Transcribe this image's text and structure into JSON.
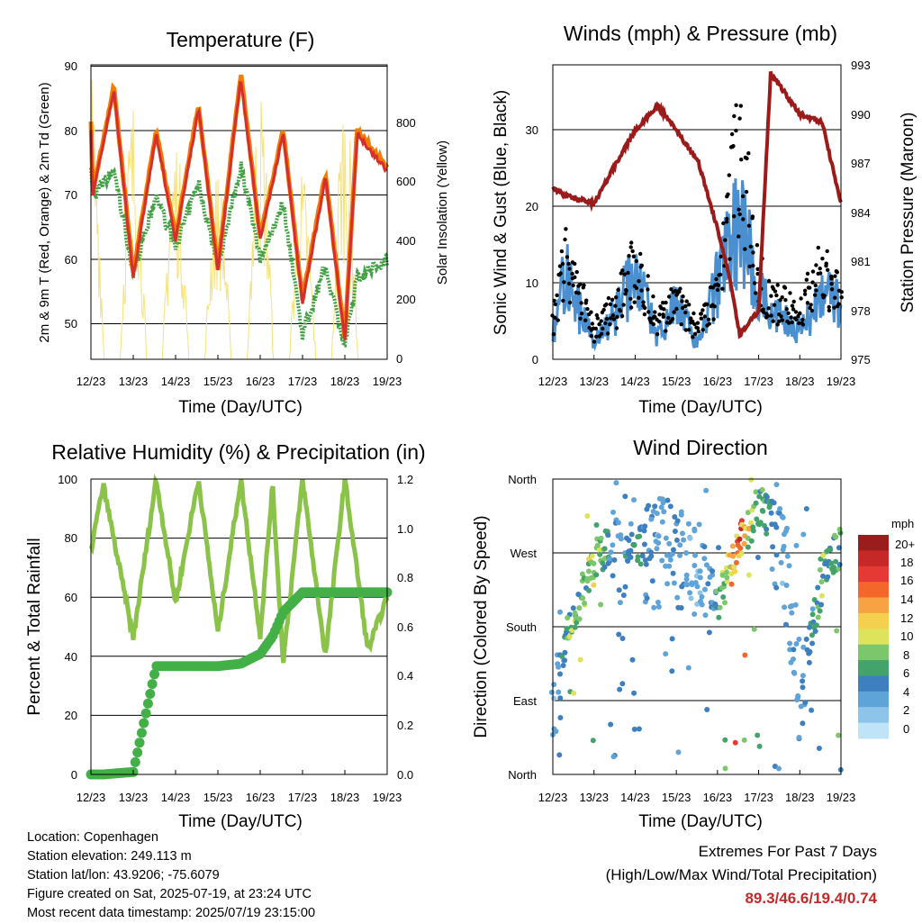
{
  "colors": {
    "temp2m": "#d32f2f",
    "temp9m": "#f57c00",
    "dew": "#43a047",
    "solar": "#f5e27a",
    "gust": "#000000",
    "wind": "#4a90d0",
    "pressure": "#9b1b1b",
    "rh": "#8bc34a",
    "precip": "#43b047",
    "extremes": "#c62828"
  },
  "x_ticks": [
    "12/23",
    "13/23",
    "14/23",
    "15/23",
    "16/23",
    "17/23",
    "18/23",
    "19/23"
  ],
  "panels": {
    "temperature": {
      "title": "Temperature (F)",
      "xlabel": "Time (Day/UTC)",
      "ylabel_left": "2m & 9m T (Red, Orange) & 2m Td (Green)",
      "ylabel_right": "Solar Insolation (Yellow)",
      "left_ticks": [
        "50",
        "60",
        "70",
        "80",
        "90"
      ],
      "right_ticks": [
        "0",
        "200",
        "400",
        "600",
        "800"
      ]
    },
    "winds": {
      "title": "Winds (mph) & Pressure (mb)",
      "xlabel": "Time (Day/UTC)",
      "ylabel_left": "Sonic Wind & Gust (Blue, Black)",
      "ylabel_right": "Station Pressure (Maroon)",
      "left_ticks": [
        "0",
        "10",
        "20",
        "30"
      ],
      "right_ticks": [
        "975",
        "978",
        "981",
        "984",
        "987",
        "990",
        "993"
      ]
    },
    "humidity": {
      "title": "Relative Humidity (%) & Precipitation (in)",
      "xlabel": "Time (Day/UTC)",
      "ylabel_left": "Percent & Total Rainfall",
      "left_ticks": [
        "0",
        "20",
        "40",
        "60",
        "80",
        "100"
      ],
      "right_ticks": [
        "0.0",
        "0.2",
        "0.4",
        "0.6",
        "0.8",
        "1.0",
        "1.2"
      ]
    },
    "direction": {
      "title": "Wind Direction",
      "xlabel": "Time (Day/UTC)",
      "ylabel_left": "Direction (Colored By Speed)",
      "dir_ticks": [
        "North",
        "East",
        "South",
        "West",
        "North"
      ],
      "legend_title": "mph",
      "legend_labels": [
        "20+",
        "18",
        "16",
        "14",
        "12",
        "10",
        "8",
        "6",
        "4",
        "2",
        "0"
      ],
      "legend_colors": [
        "#9b1c1c",
        "#c62828",
        "#e53935",
        "#f4672a",
        "#f8a343",
        "#f5d04e",
        "#dde35a",
        "#7cc66b",
        "#44a36b",
        "#3d7fbf",
        "#5fa4d9",
        "#8cc4ea",
        "#bfe3f7"
      ]
    }
  },
  "info": {
    "location": "Location: Copenhagen",
    "elevation": "Station elevation: 249.113 m",
    "latlon": "Station lat/lon: 43.9206; -75.6079",
    "created": "Figure created on Sat, 2025-07-19, at 23:24 UTC",
    "recent": "Most recent data timestamp: 2025/07/19 23:15:00"
  },
  "extremes": {
    "line1": "Extremes For Past 7 Days",
    "line2": "(High/Low/Max Wind/Total Precipitation)",
    "values": "89.3/46.6/19.4/0.74"
  },
  "chart_data": [
    {
      "type": "line",
      "title": "Temperature (F)",
      "x": [
        "12/23",
        "13/00",
        "13/12",
        "13/23",
        "14/12",
        "14/23",
        "15/12",
        "15/23",
        "16/12",
        "16/23",
        "17/12",
        "17/23",
        "18/12",
        "18/23",
        "19/06",
        "19/23"
      ],
      "series": [
        {
          "name": "2m T",
          "values": [
            81,
            70,
            87,
            57,
            80,
            63,
            84,
            58,
            89,
            63,
            80,
            53,
            73,
            47,
            80,
            74
          ]
        },
        {
          "name": "2m Td",
          "values": [
            75,
            70,
            74,
            58,
            70,
            62,
            72,
            59,
            75,
            60,
            69,
            48,
            59,
            46,
            57,
            60
          ]
        }
      ],
      "solar_peaks_days": [
        "12/23",
        "13/23",
        "14/23",
        "15/23",
        "16/23",
        "17/23",
        "18/23"
      ],
      "solar_peak_values": [
        980,
        900,
        780,
        650,
        930,
        650,
        930
      ],
      "ylim": [
        44,
        91
      ],
      "y2lim": [
        0,
        1000
      ]
    },
    {
      "type": "line",
      "title": "Winds (mph) & Pressure (mb)",
      "x": [
        "12/23",
        "13/06",
        "13/23",
        "14/12",
        "14/23",
        "15/12",
        "15/23",
        "16/12",
        "16/23",
        "17/06",
        "17/12",
        "17/23",
        "18/06",
        "18/23",
        "19/12",
        "19/23"
      ],
      "series": [
        {
          "name": "Station Pressure",
          "values": [
            985.5,
            985.0,
            984.5,
            987,
            989,
            990.5,
            989,
            987,
            983,
            980,
            976.5,
            978,
            992.5,
            990,
            989.5,
            984.5
          ]
        },
        {
          "name": "Gust",
          "values": [
            6,
            18,
            5,
            9,
            16,
            6,
            10,
            5,
            13,
            28,
            36,
            14,
            10,
            8,
            15,
            10
          ]
        },
        {
          "name": "Wind",
          "values": [
            3,
            11,
            2,
            6,
            12,
            3,
            7,
            2,
            10,
            15,
            18,
            9,
            6,
            4,
            8,
            7
          ]
        }
      ],
      "ylim": [
        0,
        38.5
      ],
      "y2lim": [
        975,
        993
      ]
    },
    {
      "type": "line",
      "title": "Relative Humidity (%) & Precipitation (in)",
      "x": [
        "12/23",
        "13/06",
        "13/23",
        "14/12",
        "14/23",
        "15/12",
        "15/23",
        "16/12",
        "16/23",
        "17/06",
        "17/12",
        "17/23",
        "18/12",
        "18/23",
        "19/12",
        "19/23"
      ],
      "series": [
        {
          "name": "RH",
          "values": [
            76,
            98,
            46,
            100,
            58,
            100,
            48,
            100,
            47,
            98,
            38,
            100,
            40,
            100,
            42,
            60
          ]
        },
        {
          "name": "Precipitation",
          "values": [
            0,
            0,
            0.01,
            0.44,
            0.44,
            0.44,
            0.44,
            0.45,
            0.49,
            0.56,
            0.66,
            0.74,
            0.74,
            0.74,
            0.74,
            0.74
          ]
        }
      ],
      "ylim": [
        0,
        100
      ],
      "y2lim": [
        0,
        1.2
      ]
    },
    {
      "type": "scatter",
      "title": "Wind Direction",
      "y_categories": [
        "North",
        "East",
        "South",
        "West",
        "North"
      ],
      "x": [
        "12/23",
        "13/12",
        "13/23",
        "14/12",
        "15/00",
        "15/12",
        "16/00",
        "16/12",
        "17/00",
        "17/06",
        "17/12",
        "17/23",
        "18/12",
        "18/23",
        "19/12",
        "19/23"
      ],
      "direction_deg": [
        110,
        200,
        260,
        290,
        280,
        270,
        260,
        250,
        215,
        250,
        280,
        330,
        300,
        100,
        240,
        280
      ],
      "speed_mph": [
        3,
        9,
        10,
        4,
        6,
        3,
        4,
        2,
        7,
        13,
        16,
        8,
        3,
        4,
        8,
        7
      ]
    }
  ]
}
